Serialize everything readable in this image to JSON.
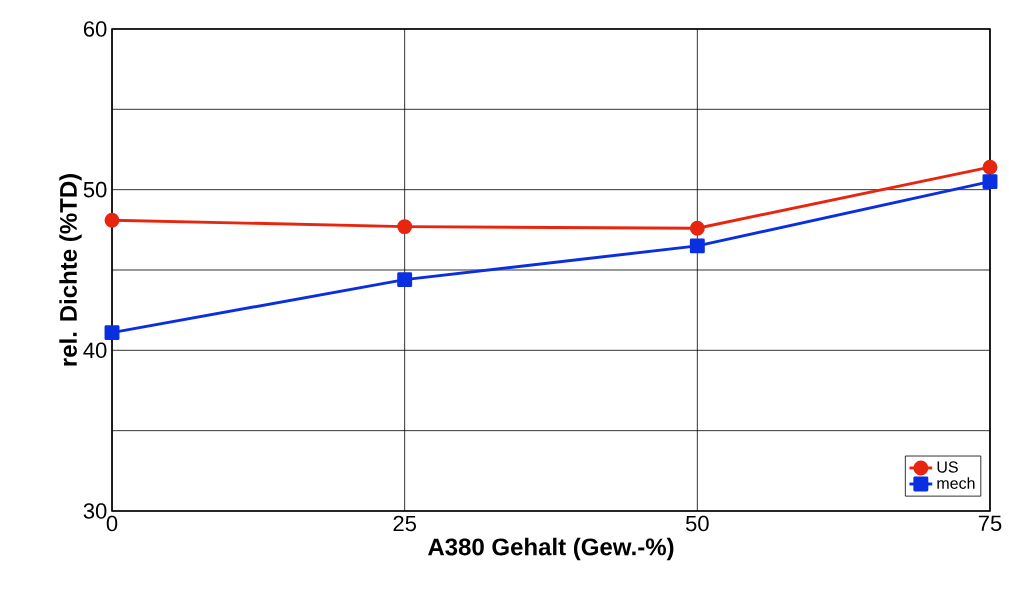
{
  "chart_data": {
    "type": "line",
    "xlabel": "A380 Gehalt (Gew.-%)",
    "ylabel": "rel. Dichte (%TD)",
    "x": [
      0,
      25,
      50,
      75
    ],
    "series": [
      {
        "name": "US",
        "color": "#e8260f",
        "marker": "circle",
        "values": [
          48.1,
          47.7,
          47.6,
          51.4
        ]
      },
      {
        "name": "mech",
        "color": "#0a2fe0",
        "marker": "square",
        "values": [
          41.1,
          44.4,
          46.5,
          50.5
        ]
      }
    ],
    "xlim": [
      0,
      75
    ],
    "xticks": [
      0,
      25,
      50,
      75
    ],
    "ylim": [
      30,
      60
    ],
    "yticks": [
      30,
      {
        "value": 35,
        "label": null
      },
      40,
      {
        "value": 45,
        "label": null
      },
      50,
      {
        "value": 55,
        "label": null
      },
      60
    ],
    "grid": true,
    "legend": "bottom right",
    "line_style": "solid"
  }
}
